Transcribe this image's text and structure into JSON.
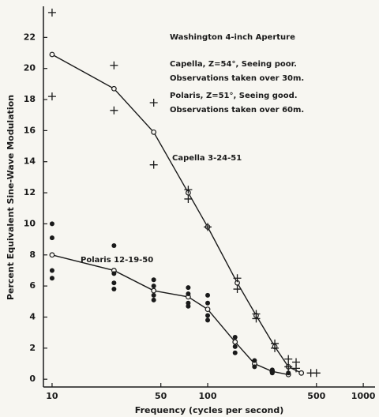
{
  "chart_data": {
    "type": "line",
    "xlabel": "Frequency (cycles per second)",
    "ylabel": "Percent Equivalent Sine-Wave Modulation",
    "annotations": [
      "Washington 4-inch Aperture",
      "Capella, Z=54°, Seeing poor.",
      "Observations taken over 30m.",
      "Polaris, Z=51°, Seeing good.",
      "Observations taken over 60m.",
      "Capella 3-24-51",
      "Polaris 12-19-50"
    ],
    "xscale": "log",
    "xlim": [
      8.8,
      1190
    ],
    "ylim": [
      -0.5,
      24
    ],
    "xticks": [
      10,
      50,
      100,
      500,
      1000
    ],
    "yticks": [
      0,
      2,
      4,
      6,
      8,
      10,
      12,
      14,
      16,
      18,
      20,
      22
    ],
    "color": "#1a1a1a",
    "series": [
      {
        "marker": "open-circle",
        "line": true,
        "x": [
          10,
          25,
          45,
          75,
          100,
          155,
          205,
          270,
          330,
          400
        ],
        "values": [
          20.9,
          18.7,
          15.9,
          12.0,
          9.8,
          6.2,
          4.1,
          2.1,
          0.8,
          0.4
        ]
      },
      {
        "marker": "open-circle",
        "line": true,
        "x": [
          10,
          25,
          45,
          75,
          100,
          150,
          200,
          260,
          330
        ],
        "values": [
          8.0,
          7.0,
          5.7,
          5.3,
          4.5,
          2.4,
          1.0,
          0.5,
          0.3
        ]
      },
      {
        "marker": "plus",
        "line": false,
        "x": [
          10,
          10,
          25,
          25,
          45,
          45,
          75,
          75,
          100,
          155,
          155,
          205,
          205,
          270,
          270,
          330,
          330,
          370,
          370,
          460,
          500
        ],
        "values": [
          23.6,
          18.2,
          20.2,
          17.3,
          17.8,
          13.8,
          12.2,
          11.6,
          9.8,
          6.5,
          5.8,
          4.2,
          3.9,
          2.3,
          2.0,
          1.3,
          0.8,
          1.1,
          0.7,
          0.4,
          0.4
        ]
      },
      {
        "marker": "dot",
        "line": false,
        "x": [
          10,
          10,
          10,
          10,
          25,
          25,
          25,
          25,
          45,
          45,
          45,
          45,
          75,
          75,
          75,
          75,
          100,
          100,
          100,
          100,
          150,
          150,
          150,
          200,
          200,
          260,
          260,
          330
        ],
        "values": [
          10.0,
          9.1,
          7.0,
          6.5,
          8.6,
          6.8,
          6.2,
          5.8,
          6.4,
          6.0,
          5.4,
          5.1,
          5.9,
          5.5,
          4.9,
          4.7,
          5.4,
          4.9,
          4.1,
          3.8,
          2.7,
          2.1,
          1.7,
          1.2,
          0.8,
          0.6,
          0.4,
          0.4
        ]
      }
    ]
  }
}
